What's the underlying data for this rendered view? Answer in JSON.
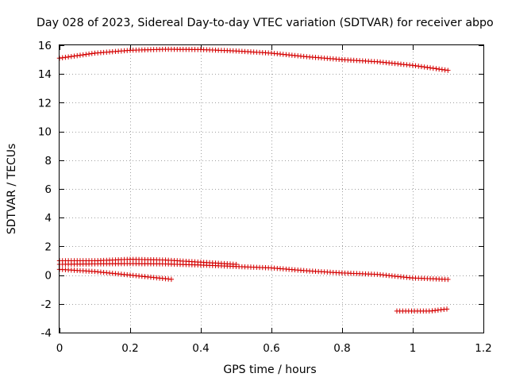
{
  "chart_data": {
    "type": "scatter",
    "title": "Day 028 of 2023, Sidereal Day-to-day VTEC variation (SDTVAR) for receiver abpo",
    "xlabel": "GPS time / hours",
    "ylabel": "SDTVAR / TECUs",
    "xlim": [
      0,
      1.2
    ],
    "ylim": [
      -4,
      16
    ],
    "xticks": [
      0,
      0.2,
      0.4,
      0.6,
      0.8,
      1,
      1.2
    ],
    "yticks": [
      -4,
      -2,
      0,
      2,
      4,
      6,
      8,
      10,
      12,
      14,
      16
    ],
    "xtick_labels": [
      "0",
      "0.2",
      "0.4",
      "0.6",
      "0.8",
      "1",
      "1.2"
    ],
    "ytick_labels": [
      "-4",
      "-2",
      "0",
      "2",
      "4",
      "6",
      "8",
      "10",
      "12",
      "14",
      "16"
    ],
    "grid": true,
    "marker": "+",
    "color": "#d40000",
    "series": [
      {
        "name": "upper-arc",
        "x_start": 0,
        "x_end": 1.1,
        "x_step": 0.00833,
        "control": [
          [
            0,
            15.1
          ],
          [
            0.1,
            15.45
          ],
          [
            0.2,
            15.65
          ],
          [
            0.3,
            15.72
          ],
          [
            0.4,
            15.7
          ],
          [
            0.5,
            15.6
          ],
          [
            0.6,
            15.45
          ],
          [
            0.7,
            15.2
          ],
          [
            0.8,
            15.0
          ],
          [
            0.9,
            14.85
          ],
          [
            1.0,
            14.6
          ],
          [
            1.1,
            14.25
          ]
        ]
      },
      {
        "name": "flat-1.0",
        "x_start": 0,
        "x_end": 0.5,
        "x_step": 0.00833,
        "control": [
          [
            0,
            1.0
          ],
          [
            0.1,
            1.0
          ],
          [
            0.2,
            1.1
          ],
          [
            0.3,
            1.05
          ],
          [
            0.4,
            0.9
          ],
          [
            0.5,
            0.75
          ]
        ]
      },
      {
        "name": "descending-0.7",
        "x_start": 0,
        "x_end": 1.1,
        "x_step": 0.00833,
        "control": [
          [
            0,
            0.75
          ],
          [
            0.1,
            0.78
          ],
          [
            0.2,
            0.8
          ],
          [
            0.3,
            0.78
          ],
          [
            0.4,
            0.7
          ],
          [
            0.5,
            0.6
          ],
          [
            0.6,
            0.5
          ],
          [
            0.7,
            0.3
          ],
          [
            0.8,
            0.15
          ],
          [
            0.9,
            0.05
          ],
          [
            1.0,
            -0.2
          ],
          [
            1.1,
            -0.3
          ]
        ]
      },
      {
        "name": "low-short",
        "x_start": 0,
        "x_end": 0.32,
        "x_step": 0.00833,
        "control": [
          [
            0,
            0.4
          ],
          [
            0.1,
            0.25
          ],
          [
            0.2,
            0.0
          ],
          [
            0.32,
            -0.3
          ]
        ]
      },
      {
        "name": "negative-tail",
        "x_start": 0.955,
        "x_end": 1.1,
        "x_step": 0.00833,
        "control": [
          [
            0.955,
            -2.5
          ],
          [
            1.0,
            -2.5
          ],
          [
            1.05,
            -2.5
          ],
          [
            1.1,
            -2.35
          ]
        ]
      }
    ]
  }
}
